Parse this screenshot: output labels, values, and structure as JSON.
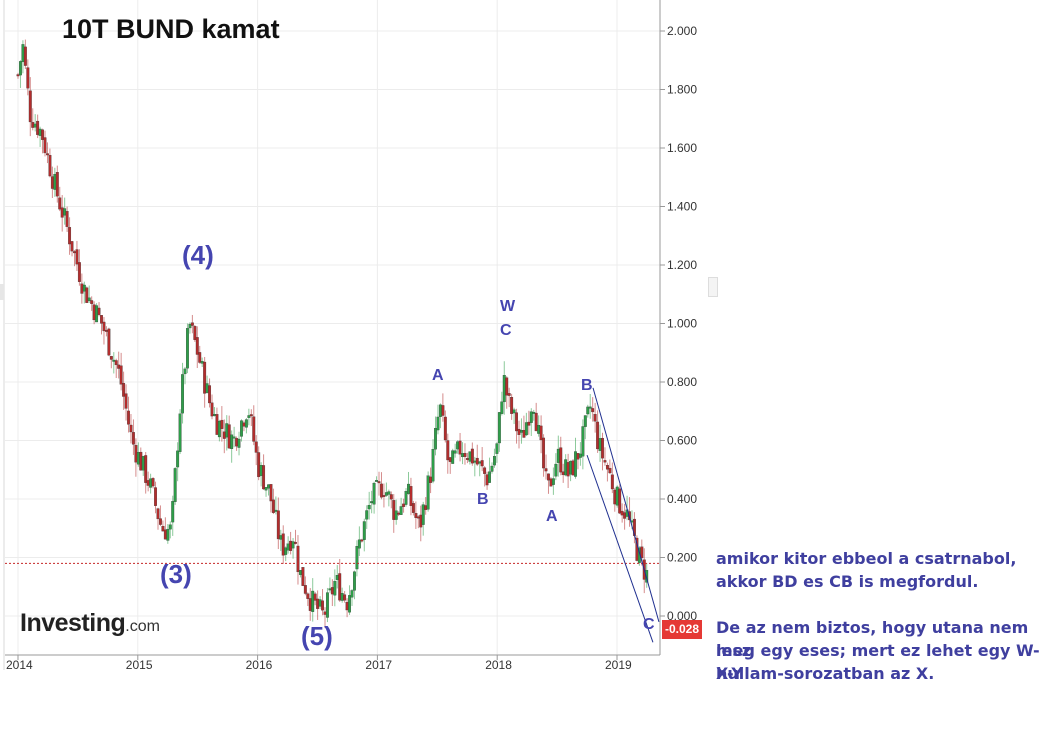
{
  "title": "10T BUND kamat",
  "logo": {
    "main": "Investing",
    "domain": ".com"
  },
  "colors": {
    "up": "#2e9e49",
    "down": "#b32d2d",
    "wave": "#4545b0",
    "channel": "#1f2f8f",
    "lastLine": "#c62828",
    "badge": "#e53935"
  },
  "wave_labels": [
    {
      "text": "(4)",
      "size": "big",
      "x": 182,
      "y": 240
    },
    {
      "text": "(3)",
      "size": "big",
      "x": 160,
      "y": 559
    },
    {
      "text": "(5)",
      "size": "big",
      "x": 301,
      "y": 621
    },
    {
      "text": "W",
      "size": "small",
      "x": 500,
      "y": 298
    },
    {
      "text": "C",
      "size": "small",
      "x": 500,
      "y": 322
    },
    {
      "text": "A",
      "size": "small",
      "x": 432,
      "y": 367
    },
    {
      "text": "B",
      "size": "small",
      "x": 477,
      "y": 491
    },
    {
      "text": "B",
      "size": "small",
      "x": 581,
      "y": 377
    },
    {
      "text": "A",
      "size": "small",
      "x": 546,
      "y": 508
    },
    {
      "text": "C",
      "size": "small",
      "x": 643,
      "y": 616
    }
  ],
  "notes": [
    "amikor kitor ebbeol a csatrnabol,",
    "akkor BD es CB is megfordul.",
    "",
    "De az nem biztos, hogy utana nem lesz",
    "meg egy eses; mert ez lehet egy W-X-Y",
    "hullam-sorozatban az X."
  ],
  "last_price_label": "-0.028",
  "chart_data": {
    "type": "candlestick",
    "title": "10T BUND kamat",
    "x_ticks": [
      "2014",
      "2015",
      "2016",
      "2017",
      "2018",
      "2019"
    ],
    "y_ticks": [
      "0.000",
      "0.200",
      "0.400",
      "0.600",
      "0.800",
      "1.000",
      "1.200",
      "1.400",
      "1.600",
      "1.800",
      "2.000"
    ],
    "ylim": [
      -0.1,
      2.1
    ],
    "xlim": [
      2014.0,
      2019.35
    ],
    "grid": true,
    "last_value": -0.028,
    "reference_line": 0.18,
    "path": [
      [
        2014.0,
        1.85
      ],
      [
        2014.04,
        1.95
      ],
      [
        2014.1,
        1.72
      ],
      [
        2014.2,
        1.65
      ],
      [
        2014.3,
        1.48
      ],
      [
        2014.45,
        1.27
      ],
      [
        2014.55,
        1.12
      ],
      [
        2014.7,
        1.0
      ],
      [
        2014.85,
        0.82
      ],
      [
        2014.95,
        0.6
      ],
      [
        2015.05,
        0.5
      ],
      [
        2015.1,
        0.45
      ],
      [
        2015.2,
        0.3
      ],
      [
        2015.28,
        0.29
      ],
      [
        2015.35,
        0.7
      ],
      [
        2015.43,
        1.0
      ],
      [
        2015.5,
        0.9
      ],
      [
        2015.6,
        0.73
      ],
      [
        2015.65,
        0.67
      ],
      [
        2015.8,
        0.6
      ],
      [
        2015.92,
        0.72
      ],
      [
        2016.0,
        0.52
      ],
      [
        2016.1,
        0.42
      ],
      [
        2016.2,
        0.23
      ],
      [
        2016.3,
        0.28
      ],
      [
        2016.35,
        0.15
      ],
      [
        2016.45,
        0.05
      ],
      [
        2016.55,
        0.0
      ],
      [
        2016.65,
        0.12
      ],
      [
        2016.75,
        0.05
      ],
      [
        2016.85,
        0.25
      ],
      [
        2016.95,
        0.4
      ],
      [
        2017.05,
        0.45
      ],
      [
        2017.15,
        0.35
      ],
      [
        2017.25,
        0.42
      ],
      [
        2017.35,
        0.3
      ],
      [
        2017.45,
        0.5
      ],
      [
        2017.52,
        0.72
      ],
      [
        2017.6,
        0.5
      ],
      [
        2017.7,
        0.58
      ],
      [
        2017.8,
        0.54
      ],
      [
        2017.92,
        0.47
      ],
      [
        2018.0,
        0.58
      ],
      [
        2018.05,
        0.82
      ],
      [
        2018.1,
        0.72
      ],
      [
        2018.2,
        0.6
      ],
      [
        2018.3,
        0.75
      ],
      [
        2018.38,
        0.52
      ],
      [
        2018.42,
        0.42
      ],
      [
        2018.5,
        0.55
      ],
      [
        2018.6,
        0.48
      ],
      [
        2018.7,
        0.58
      ],
      [
        2018.78,
        0.72
      ],
      [
        2018.85,
        0.58
      ],
      [
        2018.95,
        0.47
      ],
      [
        2019.0,
        0.4
      ],
      [
        2019.08,
        0.35
      ],
      [
        2019.15,
        0.25
      ],
      [
        2019.2,
        0.18
      ],
      [
        2019.25,
        0.14
      ]
    ],
    "channel": {
      "upper": [
        [
          2018.8,
          0.78
        ],
        [
          2019.35,
          -0.02
        ]
      ],
      "lower": [
        [
          2018.75,
          0.55
        ],
        [
          2019.3,
          -0.09
        ]
      ]
    },
    "annotations": [
      "(4)",
      "(3)",
      "(5)",
      "W",
      "C",
      "A",
      "B",
      "B",
      "A",
      "C"
    ]
  }
}
